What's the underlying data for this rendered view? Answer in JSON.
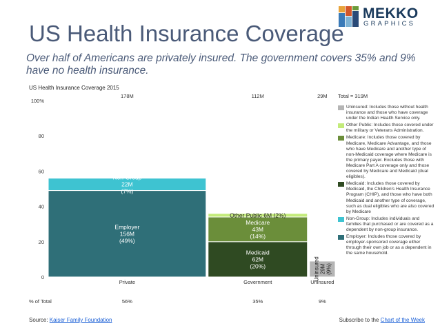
{
  "logo": {
    "word1": "MEKKO",
    "word2": "GRAPHICS"
  },
  "header": {
    "title": "US Health Insurance Coverage",
    "subtitle": "Over half of Americans are privately insured.  The government covers 35% and 9% have no health insurance."
  },
  "chart_data": {
    "type": "mekko",
    "title": "US Health Insurance Coverage 2015",
    "total_label": "Total = 319M",
    "ylim": [
      0,
      100
    ],
    "y_ticks": [
      "100%",
      "80",
      "60",
      "40",
      "20",
      "0"
    ],
    "row_label": "% of Total",
    "columns": [
      {
        "name": "Private",
        "width_value": 178,
        "top_label": "178M",
        "pct_label": "56%",
        "segments": [
          {
            "series": "Employer",
            "value": 49,
            "lines": [
              "Employer",
              "156M",
              "(49%)"
            ]
          },
          {
            "series": "Non-Group",
            "value": 7,
            "lines": [
              "Non-Group",
              "22M",
              "(7%)"
            ]
          }
        ]
      },
      {
        "name": "Government",
        "width_value": 112,
        "top_label": "112M",
        "pct_label": "35%",
        "segments": [
          {
            "series": "Medicaid",
            "value": 20,
            "lines": [
              "Medicaid",
              "62M",
              "(20%)"
            ]
          },
          {
            "series": "Medicare",
            "value": 14,
            "lines": [
              "Medicare",
              "43M",
              "(14%)"
            ]
          },
          {
            "series": "Other Public",
            "value": 2,
            "lines": [
              "Other Public 6M (2%)"
            ]
          }
        ]
      },
      {
        "name": "Uninsured",
        "width_value": 29,
        "top_label": "29M",
        "pct_label": "9%",
        "segments": [
          {
            "series": "Uninsured",
            "value": 9,
            "lines": [
              "Uninsured",
              "29M",
              "(9%)"
            ],
            "rotated": true
          }
        ]
      }
    ],
    "colors": {
      "Employer": "#2f6f78",
      "Non-Group": "#3ec3d1",
      "Medicaid": "#2f4a22",
      "Medicare": "#6b8e3a",
      "Other Public": "#c3eb7a",
      "Uninsured": "#b5b5b5"
    }
  },
  "legend": [
    {
      "series": "Uninsured",
      "text": "Uninsured: Includes those without health insurance and those who have coverage under the Indian Health Service only."
    },
    {
      "series": "Other Public",
      "text": "Other Public: Includes those covered under the military or Veterans Administration."
    },
    {
      "series": "Medicare",
      "text": "Medicare: Includes those covered by Medicare, Medicare Advantage, and those who have Medicare and another type of non-Medicaid coverage where Medicare is the primary payer. Excludes those with Medicare Part A coverage only and those covered by Medicare and Medicaid (dual eligibles)."
    },
    {
      "series": "Medicaid",
      "text": "Medicaid: Includes those covered by Medicaid, the Children's Health Insurance Program (CHIP), and those who have both Medicaid and another type of coverage, such as dual eligibles who are also covered by Medicare"
    },
    {
      "series": "Non-Group",
      "text": "Non-Group: Includes individuals and families that purchased or are covered as a dependent by non-group insurance."
    },
    {
      "series": "Employer",
      "text": "Employer: Includes those covered by employer-sponsored coverage either through their own job or as a dependent in the same household."
    }
  ],
  "footer": {
    "source_prefix": "Source: ",
    "source_link": "Kaiser Family Foundation",
    "subscribe_prefix": "Subscribe to the ",
    "subscribe_link": "Chart of the Week"
  }
}
